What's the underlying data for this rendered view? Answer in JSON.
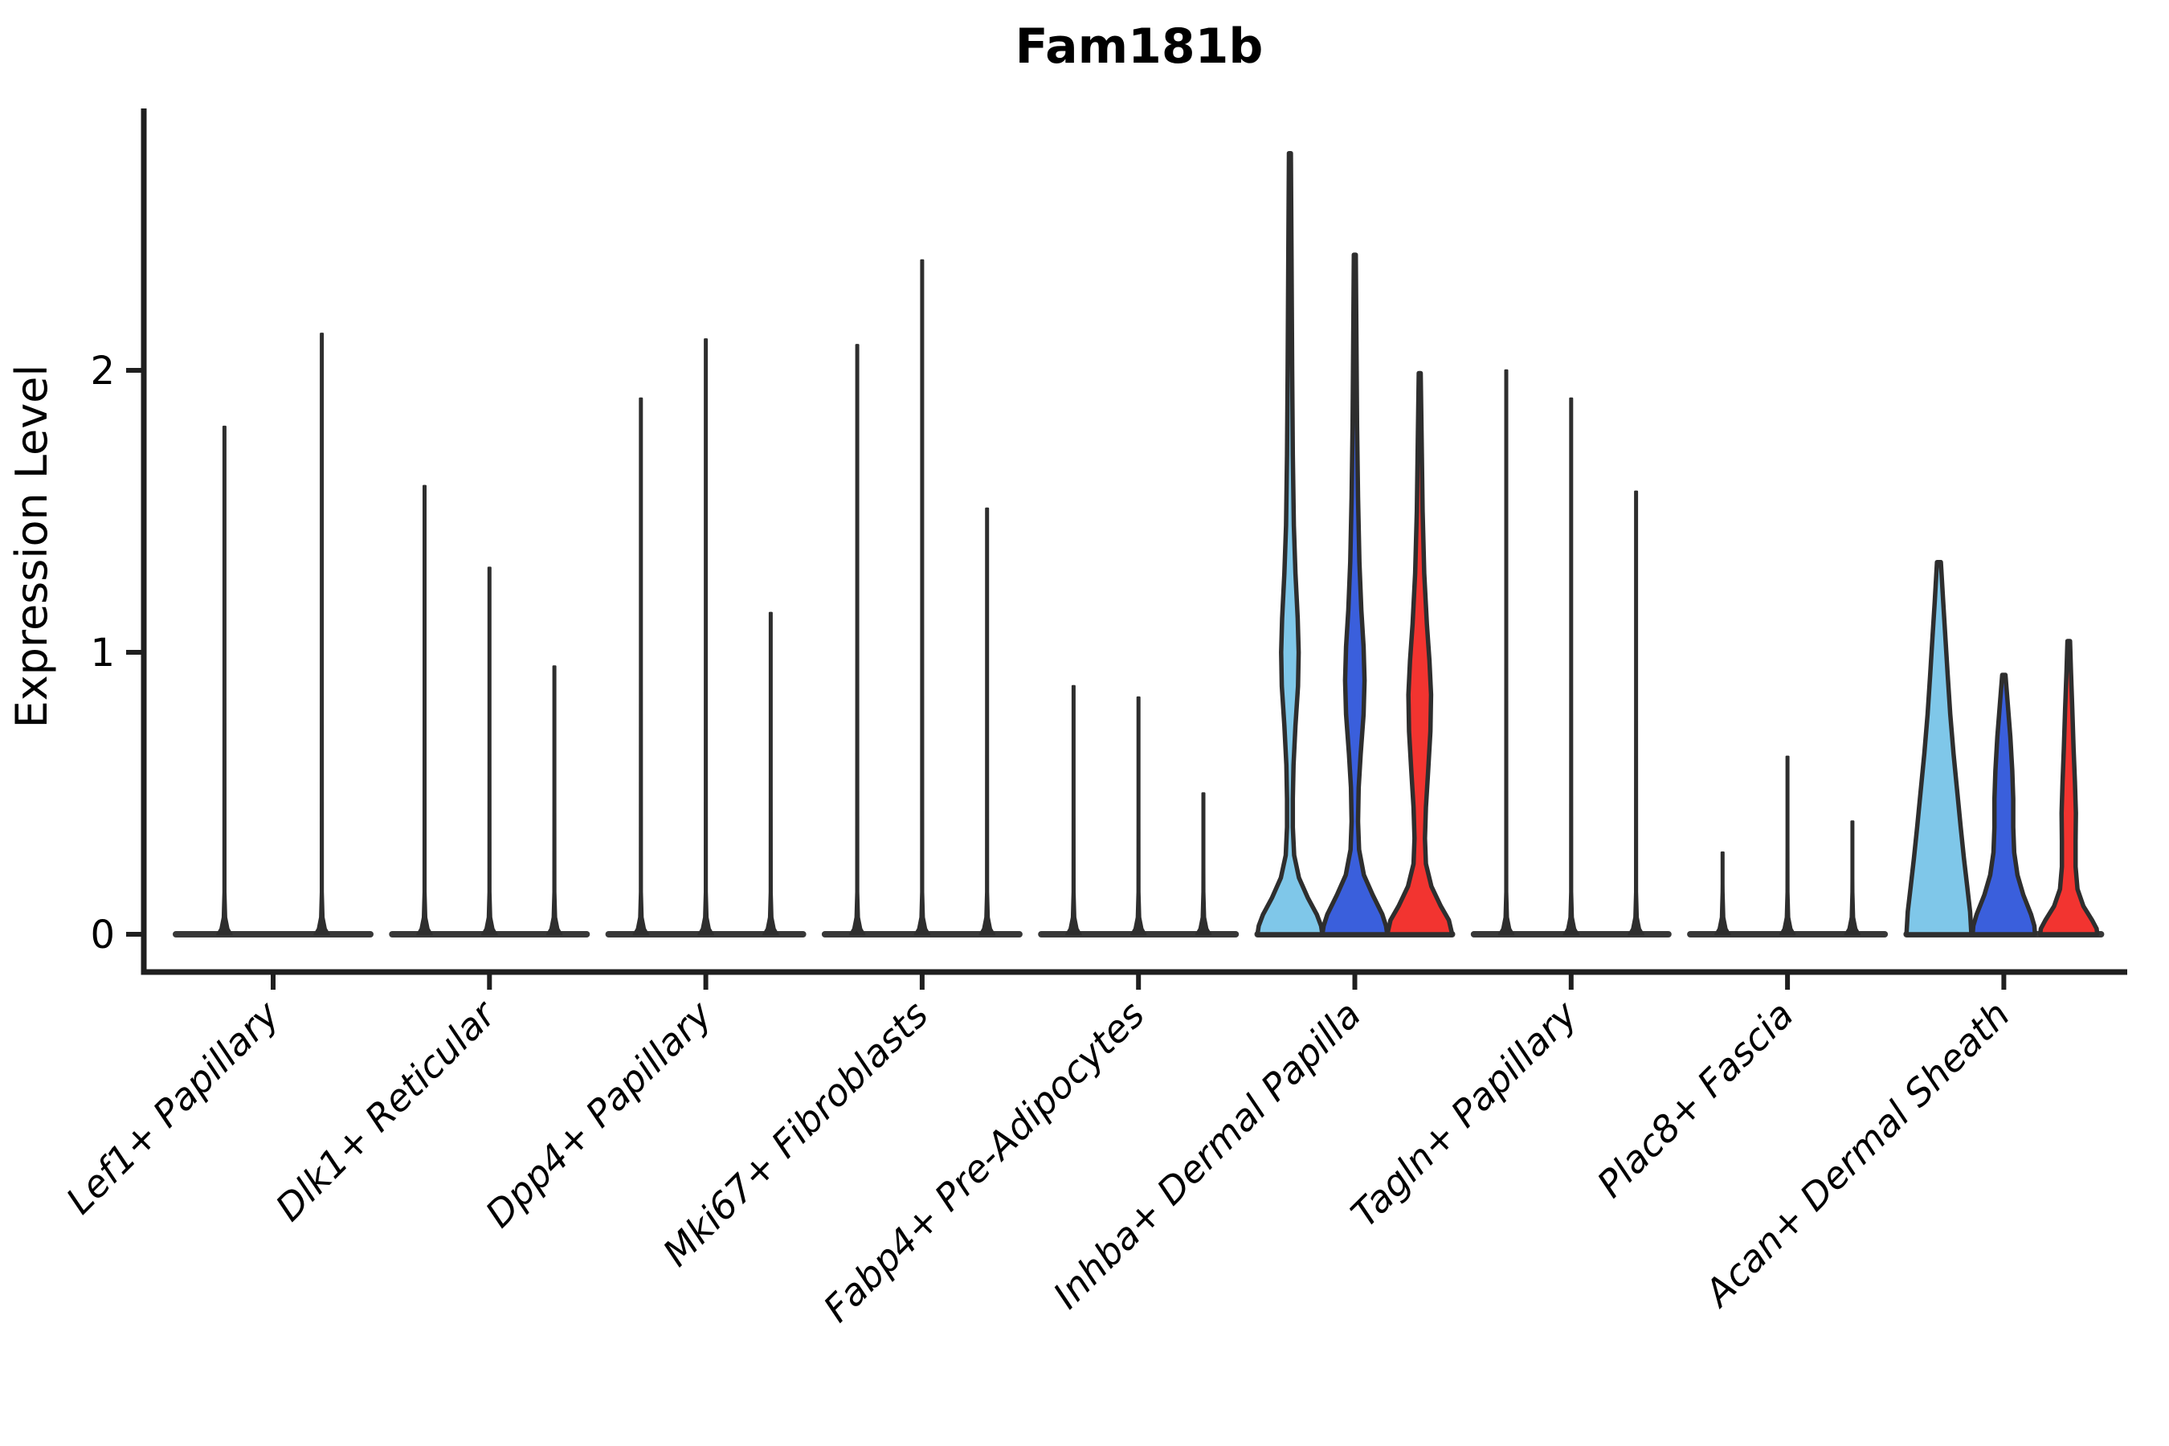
{
  "chart_data": {
    "type": "violin",
    "title": "Fam181b",
    "ylabel": "Expression Level",
    "xlabel": "",
    "yticks": [
      0,
      1,
      2
    ],
    "ylim": [
      -0.13,
      2.93
    ],
    "legend": "none",
    "grid": false,
    "label_rotation_deg": 45,
    "split_colors": {
      "light_blue": "#7FC7E9",
      "blue": "#3A5FDC",
      "red": "#F23430"
    },
    "outline_color": "#2E2E2E",
    "categories": [
      "Lef1+ Papillary",
      "Dlk1+ Reticular",
      "Dpp4+ Papillary",
      "Mki67+ Fibroblasts",
      "Fabp4+ Pre-Adipocytes",
      "Inhba+ Dermal Papilla",
      "Tagln+ Papillary",
      "Plac8+ Fascia",
      "Acan+ Dermal Sheath"
    ],
    "groups": [
      {
        "category": "Lef1+ Papillary",
        "violins": [
          {
            "offset": -0.225,
            "kind": "spike",
            "max": 1.8
          },
          {
            "offset": 0.225,
            "kind": "spike",
            "max": 2.13
          }
        ]
      },
      {
        "category": "Dlk1+ Reticular",
        "violins": [
          {
            "offset": -0.3,
            "kind": "spike",
            "max": 1.59
          },
          {
            "offset": 0.0,
            "kind": "spike",
            "max": 1.3
          },
          {
            "offset": 0.3,
            "kind": "spike",
            "max": 0.95
          }
        ]
      },
      {
        "category": "Dpp4+ Papillary",
        "violins": [
          {
            "offset": -0.3,
            "kind": "spike",
            "max": 1.9
          },
          {
            "offset": 0.0,
            "kind": "spike",
            "max": 2.11
          },
          {
            "offset": 0.3,
            "kind": "spike",
            "max": 1.14
          }
        ]
      },
      {
        "category": "Mki67+ Fibroblasts",
        "violins": [
          {
            "offset": -0.3,
            "kind": "spike",
            "max": 2.09
          },
          {
            "offset": 0.0,
            "kind": "spike",
            "max": 2.39
          },
          {
            "offset": 0.3,
            "kind": "spike",
            "max": 1.51
          }
        ]
      },
      {
        "category": "Fabp4+ Pre-Adipocytes",
        "violins": [
          {
            "offset": -0.3,
            "kind": "spike",
            "max": 0.88
          },
          {
            "offset": 0.0,
            "kind": "spike",
            "max": 0.84
          },
          {
            "offset": 0.3,
            "kind": "spike",
            "max": 0.5
          }
        ]
      },
      {
        "category": "Inhba+ Dermal Papilla",
        "violins": [
          {
            "offset": -0.3,
            "kind": "violin",
            "max": 2.77,
            "color": "light_blue",
            "profile": [
              [
                2.77,
                0.03
              ],
              [
                2.4,
                0.05
              ],
              [
                2.0,
                0.07
              ],
              [
                1.7,
                0.09
              ],
              [
                1.45,
                0.12
              ],
              [
                1.28,
                0.17
              ],
              [
                1.12,
                0.24
              ],
              [
                1.0,
                0.27
              ],
              [
                0.88,
                0.25
              ],
              [
                0.74,
                0.17
              ],
              [
                0.6,
                0.11
              ],
              [
                0.48,
                0.09
              ],
              [
                0.38,
                0.09
              ],
              [
                0.28,
                0.13
              ],
              [
                0.2,
                0.28
              ],
              [
                0.13,
                0.55
              ],
              [
                0.07,
                0.83
              ],
              [
                0.03,
                0.96
              ],
              [
                0.0,
                1.0
              ]
            ]
          },
          {
            "offset": 0.0,
            "kind": "violin",
            "max": 2.41,
            "color": "blue",
            "profile": [
              [
                2.41,
                0.03
              ],
              [
                2.1,
                0.05
              ],
              [
                1.8,
                0.07
              ],
              [
                1.55,
                0.1
              ],
              [
                1.32,
                0.14
              ],
              [
                1.15,
                0.2
              ],
              [
                1.02,
                0.27
              ],
              [
                0.9,
                0.3
              ],
              [
                0.78,
                0.27
              ],
              [
                0.64,
                0.18
              ],
              [
                0.52,
                0.12
              ],
              [
                0.4,
                0.1
              ],
              [
                0.3,
                0.13
              ],
              [
                0.21,
                0.28
              ],
              [
                0.14,
                0.55
              ],
              [
                0.07,
                0.85
              ],
              [
                0.03,
                0.96
              ],
              [
                0.0,
                1.0
              ]
            ]
          },
          {
            "offset": 0.3,
            "kind": "violin",
            "max": 1.99,
            "color": "red",
            "profile": [
              [
                1.99,
                0.03
              ],
              [
                1.75,
                0.06
              ],
              [
                1.5,
                0.09
              ],
              [
                1.28,
                0.14
              ],
              [
                1.1,
                0.22
              ],
              [
                0.97,
                0.3
              ],
              [
                0.85,
                0.35
              ],
              [
                0.72,
                0.33
              ],
              [
                0.58,
                0.26
              ],
              [
                0.45,
                0.19
              ],
              [
                0.34,
                0.16
              ],
              [
                0.25,
                0.19
              ],
              [
                0.17,
                0.36
              ],
              [
                0.1,
                0.65
              ],
              [
                0.05,
                0.9
              ],
              [
                0.0,
                1.0
              ]
            ]
          }
        ]
      },
      {
        "category": "Tagln+ Papillary",
        "violins": [
          {
            "offset": -0.3,
            "kind": "spike",
            "max": 2.0
          },
          {
            "offset": 0.0,
            "kind": "spike",
            "max": 1.9
          },
          {
            "offset": 0.3,
            "kind": "spike",
            "max": 1.57
          }
        ]
      },
      {
        "category": "Plac8+ Fascia",
        "violins": [
          {
            "offset": -0.3,
            "kind": "spike",
            "max": 0.29
          },
          {
            "offset": 0.0,
            "kind": "spike",
            "max": 0.63
          },
          {
            "offset": 0.3,
            "kind": "spike",
            "max": 0.4
          }
        ]
      },
      {
        "category": "Acan+ Dermal Sheath",
        "violins": [
          {
            "offset": -0.3,
            "kind": "violin",
            "max": 1.32,
            "color": "light_blue",
            "profile": [
              [
                1.32,
                0.06
              ],
              [
                1.18,
                0.13
              ],
              [
                1.05,
                0.2
              ],
              [
                0.92,
                0.27
              ],
              [
                0.78,
                0.35
              ],
              [
                0.64,
                0.45
              ],
              [
                0.5,
                0.57
              ],
              [
                0.38,
                0.67
              ],
              [
                0.27,
                0.77
              ],
              [
                0.17,
                0.87
              ],
              [
                0.08,
                0.96
              ],
              [
                0.0,
                1.0
              ]
            ]
          },
          {
            "offset": 0.0,
            "kind": "violin",
            "max": 0.92,
            "color": "blue",
            "profile": [
              [
                0.92,
                0.05
              ],
              [
                0.82,
                0.12
              ],
              [
                0.7,
                0.2
              ],
              [
                0.58,
                0.26
              ],
              [
                0.48,
                0.29
              ],
              [
                0.38,
                0.29
              ],
              [
                0.29,
                0.32
              ],
              [
                0.21,
                0.42
              ],
              [
                0.14,
                0.6
              ],
              [
                0.07,
                0.84
              ],
              [
                0.03,
                0.94
              ],
              [
                0.0,
                0.96
              ]
            ]
          },
          {
            "offset": 0.3,
            "kind": "violin",
            "max": 1.04,
            "color": "red",
            "profile": [
              [
                1.04,
                0.04
              ],
              [
                0.93,
                0.07
              ],
              [
                0.8,
                0.11
              ],
              [
                0.66,
                0.15
              ],
              [
                0.54,
                0.19
              ],
              [
                0.43,
                0.22
              ],
              [
                0.33,
                0.21
              ],
              [
                0.24,
                0.21
              ],
              [
                0.16,
                0.27
              ],
              [
                0.1,
                0.45
              ],
              [
                0.05,
                0.72
              ],
              [
                0.02,
                0.86
              ],
              [
                0.0,
                0.88
              ]
            ]
          }
        ]
      }
    ]
  }
}
